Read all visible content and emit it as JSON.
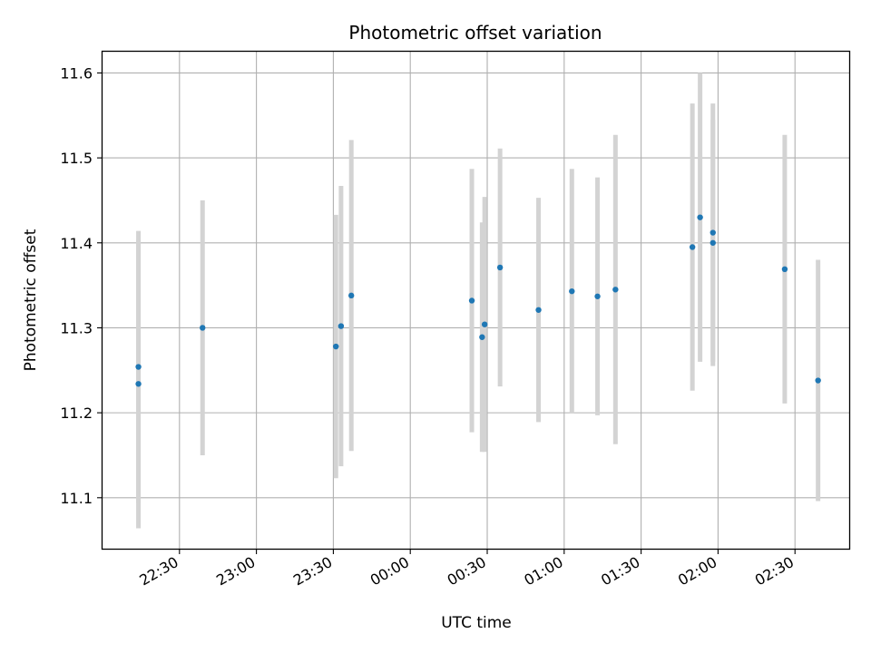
{
  "chart_data": {
    "type": "scatter",
    "title": "Photometric offset variation",
    "xlabel": "UTC time",
    "ylabel": "Photometric offset",
    "grid": true,
    "x_tick_labels": [
      "22:30",
      "23:00",
      "23:30",
      "00:00",
      "00:30",
      "01:00",
      "01:30",
      "02:00",
      "02:30"
    ],
    "x_tick_minutes": [
      -90,
      -60,
      -30,
      0,
      30,
      60,
      90,
      120,
      150
    ],
    "xlim_minutes": [
      -120,
      171.5
    ],
    "y_ticks": [
      11.1,
      11.2,
      11.3,
      11.4,
      11.5,
      11.6
    ],
    "y_tick_labels": [
      "11.1",
      "11.2",
      "11.3",
      "11.4",
      "11.5",
      "11.6"
    ],
    "ylim": [
      11.04,
      11.625
    ],
    "point_color": "#1f77b4",
    "errorbar_color": "#d3d3d3",
    "points": [
      {
        "time": "22:14",
        "t": -106,
        "y": 11.234,
        "err": 0.17
      },
      {
        "time": "22:14",
        "t": -106,
        "y": 11.254,
        "err": 0.16
      },
      {
        "time": "22:39",
        "t": -81,
        "y": 11.3,
        "err": 0.15
      },
      {
        "time": "23:31",
        "t": -29,
        "y": 11.278,
        "err": 0.155
      },
      {
        "time": "23:33",
        "t": -27,
        "y": 11.302,
        "err": 0.165
      },
      {
        "time": "23:37",
        "t": -23,
        "y": 11.338,
        "err": 0.183
      },
      {
        "time": "00:24",
        "t": 24,
        "y": 11.332,
        "err": 0.155
      },
      {
        "time": "00:28",
        "t": 28,
        "y": 11.289,
        "err": 0.135
      },
      {
        "time": "00:29",
        "t": 29,
        "y": 11.304,
        "err": 0.15
      },
      {
        "time": "00:35",
        "t": 35,
        "y": 11.371,
        "err": 0.14
      },
      {
        "time": "00:50",
        "t": 50,
        "y": 11.321,
        "err": 0.132
      },
      {
        "time": "01:03",
        "t": 63,
        "y": 11.343,
        "err": 0.144
      },
      {
        "time": "01:13",
        "t": 73,
        "y": 11.337,
        "err": 0.14
      },
      {
        "time": "01:20",
        "t": 80,
        "y": 11.345,
        "err": 0.182
      },
      {
        "time": "01:50",
        "t": 110,
        "y": 11.395,
        "err": 0.169
      },
      {
        "time": "01:53",
        "t": 113,
        "y": 11.43,
        "err": 0.17
      },
      {
        "time": "01:58",
        "t": 118,
        "y": 11.4,
        "err": 0.145
      },
      {
        "time": "01:58",
        "t": 118,
        "y": 11.412,
        "err": 0.152
      },
      {
        "time": "02:26",
        "t": 146,
        "y": 11.369,
        "err": 0.158
      },
      {
        "time": "02:39",
        "t": 159,
        "y": 11.238,
        "err": 0.142
      }
    ]
  }
}
